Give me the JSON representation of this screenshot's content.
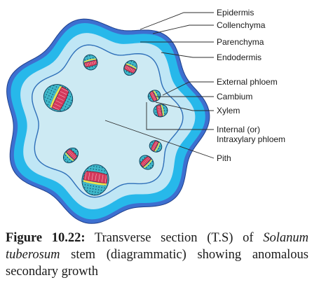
{
  "labels": {
    "epidermis": "Epidermis",
    "collenchyma": "Collenchyma",
    "parenchyma": "Parenchyma",
    "endodermis": "Endodermis",
    "external_phloem": "External phloem",
    "cambium": "Cambium",
    "xylem": "Xylem",
    "internal_phloem_line1": "Internal (or)",
    "internal_phloem_line2": "Intraxylary phloem",
    "pith": "Pith"
  },
  "caption": {
    "lead": "Figure 10.22:",
    "part1": " Transverse section (T.S) of ",
    "species": "Solanum tuberosum",
    "part2": " stem (diagrammatic) showing anomalous secondary growth"
  },
  "colors": {
    "epidermis": "#3d6fd0",
    "collenchyma": "#27b8ea",
    "parenchyma": "#bfe6f5",
    "endodermis_line": "#2f6fb8",
    "pith": "#cdeaf3",
    "phloem": "#3fb7c9",
    "xylem": "#d43a5c",
    "cambium": "#f2e14a",
    "leader": "#2b2b2b"
  }
}
